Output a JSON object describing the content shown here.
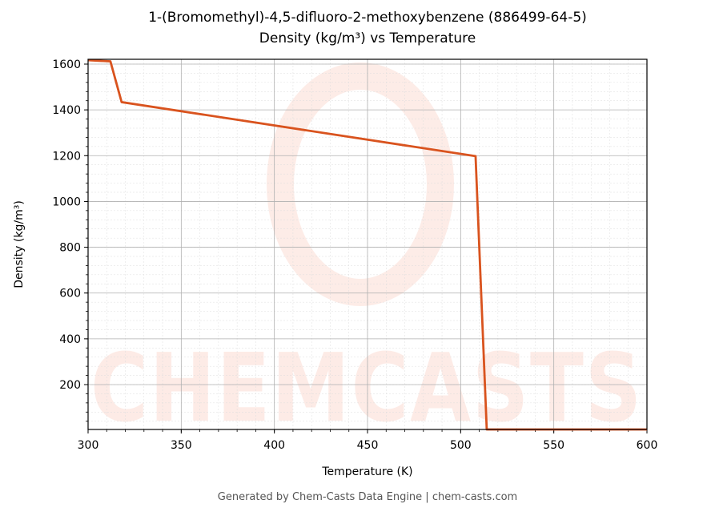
{
  "chart_data": {
    "type": "line",
    "title": "1-(Bromomethyl)-4,5-difluoro-2-methoxybenzene (886499-64-5)",
    "subtitle": "Density (kg/m³) vs Temperature",
    "x_label": "Temperature (K)",
    "y_label": "Density (kg/m³)",
    "x": [
      300,
      312,
      318,
      508,
      514,
      600
    ],
    "series": [
      {
        "name": "Density",
        "color": "#d9531e",
        "values": [
          1617,
          1612,
          1434,
          1198,
          4,
          4
        ]
      }
    ],
    "xlim": [
      300,
      600
    ],
    "ylim": [
      4,
      1621
    ],
    "xticks": [
      300,
      350,
      400,
      450,
      500,
      550,
      600
    ],
    "yticks": [
      200,
      400,
      600,
      800,
      1000,
      1200,
      1400,
      1600
    ],
    "grid": true,
    "minor_grid": true,
    "watermark": "CHEMCASTS",
    "footer": "Generated by Chem-Casts Data Engine | chem-casts.com"
  }
}
